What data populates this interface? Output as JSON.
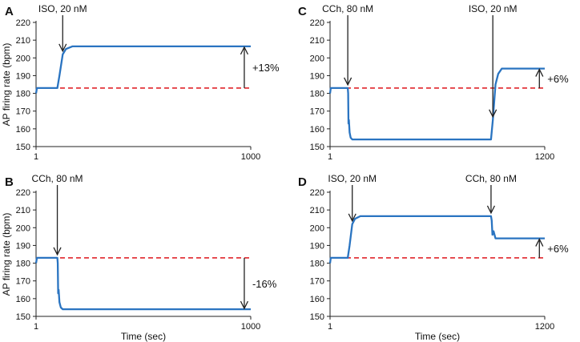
{
  "figure": {
    "ylabel": "AP firing rate (bpm)",
    "xlabel": "Time (sec)",
    "colors": {
      "trace": "#2a74c1",
      "baseline": "#e0262b",
      "axis": "#222222",
      "text": "#111111"
    }
  },
  "chart_data": [
    {
      "panel": "A",
      "type": "line",
      "ylim": [
        150,
        220
      ],
      "yticks": [
        "150",
        "160",
        "170",
        "180",
        "190",
        "200",
        "210",
        "220"
      ],
      "xlim": [
        1,
        1000
      ],
      "xticks": [
        {
          "value": 1,
          "label": "1"
        },
        {
          "value": 1000,
          "label": "1000"
        }
      ],
      "baseline": 183,
      "series": [
        {
          "name": "AP firing rate",
          "x": [
            1,
            5,
            100,
            110,
            125,
            140,
            170,
            1000
          ],
          "y": [
            180,
            183,
            183,
            190,
            202,
            205,
            206.5,
            206.5
          ]
        }
      ],
      "annotations": [
        {
          "text": "ISO, 20 nM",
          "x": 125
        }
      ],
      "change": {
        "text": "+13%",
        "x": 970,
        "from": 183,
        "to": 206.5
      }
    },
    {
      "panel": "B",
      "type": "line",
      "ylim": [
        150,
        220
      ],
      "yticks": [
        "150",
        "160",
        "170",
        "180",
        "190",
        "200",
        "210",
        "220"
      ],
      "xlim": [
        1,
        1000
      ],
      "xticks": [
        {
          "value": 1,
          "label": "1"
        },
        {
          "value": 1000,
          "label": "1000"
        }
      ],
      "xlabel": "Time (sec)",
      "baseline": 183,
      "series": [
        {
          "name": "AP firing rate",
          "x": [
            1,
            5,
            100,
            102,
            104,
            106,
            110,
            116,
            125,
            1000
          ],
          "y": [
            180,
            183,
            183,
            180,
            163,
            165,
            158,
            155,
            154,
            154
          ]
        }
      ],
      "annotations": [
        {
          "text": "CCh, 80 nM",
          "x": 100
        }
      ],
      "change": {
        "text": "-16%",
        "x": 970,
        "from": 183,
        "to": 154
      }
    },
    {
      "panel": "C",
      "type": "line",
      "ylim": [
        150,
        220
      ],
      "yticks": [
        "150",
        "160",
        "170",
        "180",
        "190",
        "200",
        "210",
        "220"
      ],
      "xlim": [
        1,
        1200
      ],
      "xticks": [
        {
          "value": 1,
          "label": "1"
        },
        {
          "value": 1200,
          "label": "1200"
        }
      ],
      "baseline": 183,
      "series": [
        {
          "name": "AP firing rate",
          "x": [
            1,
            5,
            100,
            102,
            104,
            106,
            110,
            116,
            125,
            900,
            910,
            925,
            940,
            960,
            1200
          ],
          "y": [
            180,
            183,
            183,
            180,
            163,
            165,
            158,
            155,
            154,
            154,
            165,
            185,
            191,
            194,
            194
          ]
        }
      ],
      "annotations": [
        {
          "text": "CCh, 80 nM",
          "x": 100
        },
        {
          "text": "ISO, 20 nM",
          "x": 910
        }
      ],
      "change": {
        "text": "+6%",
        "x": 1170,
        "from": 183,
        "to": 194
      }
    },
    {
      "panel": "D",
      "type": "line",
      "ylim": [
        150,
        220
      ],
      "yticks": [
        "150",
        "160",
        "170",
        "180",
        "190",
        "200",
        "210",
        "220"
      ],
      "xlim": [
        1,
        1200
      ],
      "xticks": [
        {
          "value": 1,
          "label": "1"
        },
        {
          "value": 1200,
          "label": "1200"
        }
      ],
      "xlabel": "Time (sec)",
      "baseline": 183,
      "series": [
        {
          "name": "AP firing rate",
          "x": [
            1,
            5,
            100,
            110,
            125,
            140,
            170,
            900,
            904,
            908,
            914,
            925,
            1200
          ],
          "y": [
            180,
            183,
            183,
            190,
            202,
            205,
            206.5,
            206.5,
            204,
            196,
            198,
            194,
            194
          ]
        }
      ],
      "annotations": [
        {
          "text": "ISO, 20 nM",
          "x": 125
        },
        {
          "text": "CCh, 80 nM",
          "x": 900
        }
      ],
      "change": {
        "text": "+6%",
        "x": 1170,
        "from": 183,
        "to": 194
      }
    }
  ]
}
